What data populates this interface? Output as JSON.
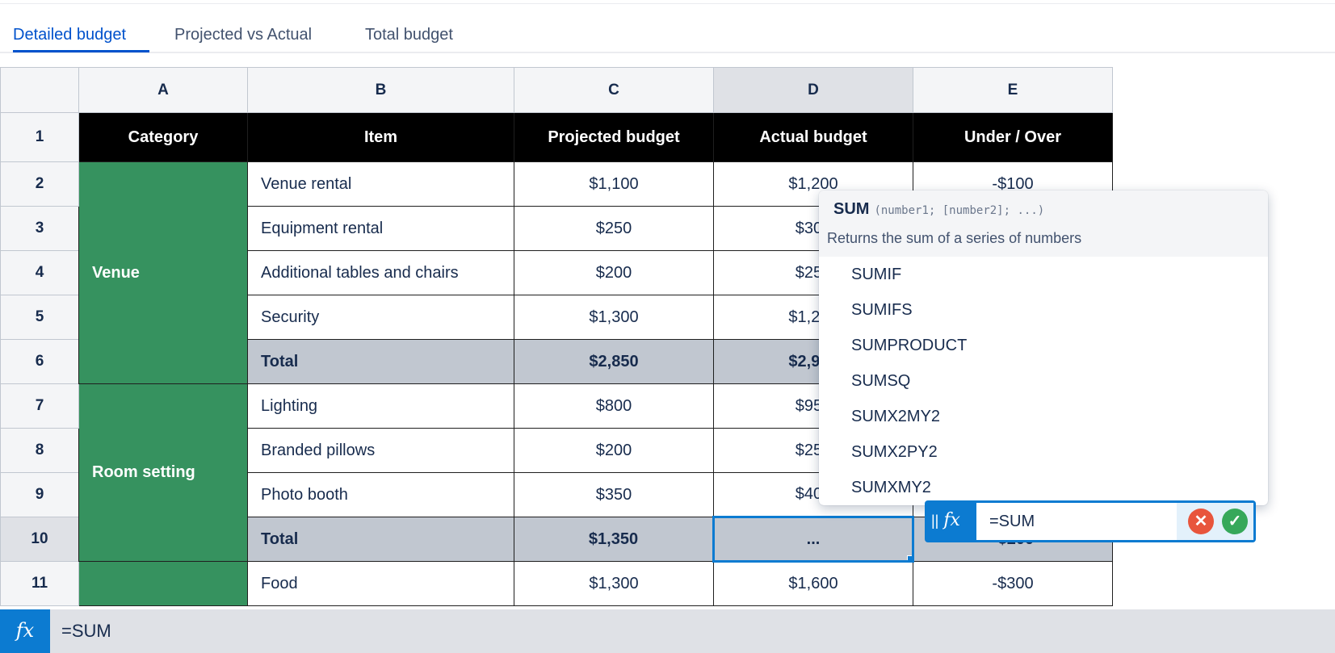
{
  "tabs": [
    {
      "label": "Detailed budget",
      "active": true
    },
    {
      "label": "Projected vs Actual",
      "active": false
    },
    {
      "label": "Total budget",
      "active": false
    }
  ],
  "columns": [
    "A",
    "B",
    "C",
    "D",
    "E"
  ],
  "header_row": {
    "row": "1",
    "cells": [
      "Category",
      "Item",
      "Projected budget",
      "Actual budget",
      "Under / Over"
    ]
  },
  "categories": {
    "venue": "Venue",
    "room": "Room setting"
  },
  "rows": [
    {
      "row": "2",
      "item": "Venue rental",
      "projected": "$1,100",
      "actual": "$1,200",
      "diff": "-$100"
    },
    {
      "row": "3",
      "item": "Equipment rental",
      "projected": "$250",
      "actual": "$300",
      "diff": ""
    },
    {
      "row": "4",
      "item": "Additional tables and chairs",
      "projected": "$200",
      "actual": "$250",
      "diff": ""
    },
    {
      "row": "5",
      "item": "Security",
      "projected": "$1,300",
      "actual": "$1,200",
      "diff": ""
    },
    {
      "row": "6",
      "item": "Total",
      "projected": "$2,850",
      "actual": "$2,950",
      "diff": ""
    },
    {
      "row": "7",
      "item": "Lighting",
      "projected": "$800",
      "actual": "$950",
      "diff": ""
    },
    {
      "row": "8",
      "item": "Branded pillows",
      "projected": "$200",
      "actual": "$250",
      "diff": ""
    },
    {
      "row": "9",
      "item": "Photo booth",
      "projected": "$350",
      "actual": "$400",
      "diff": ""
    },
    {
      "row": "10",
      "item": "Total",
      "projected": "$1,350",
      "actual": "...",
      "diff": "-$200"
    },
    {
      "row": "11",
      "item": "Food",
      "projected": "$1,300",
      "actual": "$1,600",
      "diff": "-$300"
    }
  ],
  "autocomplete": {
    "signature": "SUM",
    "args": "(number1; [number2]; ...)",
    "description": "Returns the sum of a series of numbers",
    "items": [
      "SUMIF",
      "SUMIFS",
      "SUMPRODUCT",
      "SUMSQ",
      "SUMX2MY2",
      "SUMX2PY2",
      "SUMXMY2"
    ]
  },
  "cell_editor": {
    "fx_label": "fx",
    "value": "=SUM",
    "cancel_icon": "x-circle-icon",
    "accept_icon": "check-circle-icon"
  },
  "formula_bar": {
    "fx_label": "fx",
    "value": "=SUM"
  },
  "colors": {
    "accent": "#0c7bd1",
    "category_green": "#36925f",
    "total_gray": "#c1c7d0",
    "cancel_red": "#e8553c",
    "accept_green": "#36a85a"
  }
}
